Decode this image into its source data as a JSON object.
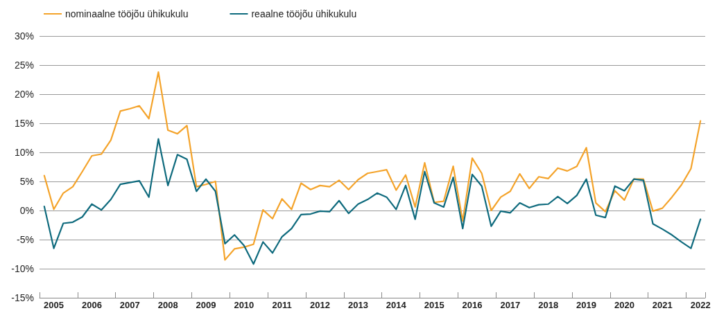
{
  "chart_data": {
    "type": "line",
    "categories": [
      null,
      "2005",
      null,
      null,
      null,
      "2006",
      null,
      null,
      null,
      "2007",
      null,
      null,
      null,
      "2008",
      null,
      null,
      null,
      "2009",
      null,
      null,
      null,
      "2010",
      null,
      null,
      null,
      "2011",
      null,
      null,
      null,
      "2012",
      null,
      null,
      null,
      "2013",
      null,
      null,
      null,
      "2014",
      null,
      null,
      null,
      "2015",
      null,
      null,
      null,
      "2016",
      null,
      null,
      null,
      "2017",
      null,
      null,
      null,
      "2018",
      null,
      null,
      null,
      "2019",
      null,
      null,
      null,
      "2020",
      null,
      null,
      null,
      "2021",
      null,
      null,
      null,
      "2022"
    ],
    "series": [
      {
        "name": "nominaalne tööjõu ühikukulu",
        "color": "#f4a32a",
        "values": [
          6.0,
          0.2,
          3.0,
          4.1,
          6.7,
          9.4,
          9.7,
          12.1,
          17.1,
          17.5,
          18.0,
          15.8,
          23.8,
          13.8,
          13.2,
          14.6,
          4.1,
          4.5,
          5.0,
          -8.5,
          -6.6,
          -6.3,
          -5.8,
          0.1,
          -1.4,
          2.0,
          0.2,
          4.7,
          3.6,
          4.3,
          4.1,
          5.2,
          3.6,
          5.3,
          6.4,
          6.7,
          7.0,
          3.5,
          6.1,
          0.6,
          8.2,
          1.4,
          1.6,
          7.6,
          -1.8,
          9.0,
          6.4,
          0.0,
          2.3,
          3.3,
          6.3,
          3.8,
          5.8,
          5.5,
          7.3,
          6.8,
          7.6,
          10.8,
          1.3,
          -0.2,
          3.4,
          1.8,
          5.4,
          5.4,
          -0.1,
          0.4,
          2.3,
          4.4,
          7.2,
          15.4
        ]
      },
      {
        "name": "reaalne tööjõu ühikukulu",
        "color": "#0e6a7d",
        "values": [
          0.7,
          -6.5,
          -2.2,
          -2.0,
          -1.1,
          1.1,
          0.1,
          1.9,
          4.5,
          4.8,
          5.1,
          2.3,
          12.3,
          4.3,
          9.6,
          8.8,
          3.3,
          5.4,
          3.3,
          -5.7,
          -4.2,
          -6.0,
          -9.2,
          -5.4,
          -7.3,
          -4.5,
          -3.1,
          -0.7,
          -0.6,
          -0.1,
          -0.2,
          1.7,
          -0.5,
          1.1,
          1.9,
          3.0,
          2.3,
          0.2,
          4.3,
          -1.5,
          6.7,
          1.3,
          0.6,
          5.7,
          -3.1,
          6.2,
          4.2,
          -2.7,
          -0.1,
          -0.4,
          1.3,
          0.5,
          1.0,
          1.1,
          2.4,
          1.2,
          2.6,
          5.4,
          -0.8,
          -1.2,
          4.2,
          3.4,
          5.4,
          5.2,
          -2.3,
          -3.2,
          -4.2,
          -5.4,
          -6.5,
          -1.5
        ]
      }
    ],
    "ylim": [
      -15,
      30
    ],
    "yticks": [
      {
        "value": -15,
        "label": "-15%"
      },
      {
        "value": -10,
        "label": "-10%"
      },
      {
        "value": -5,
        "label": "-5%"
      },
      {
        "value": 0,
        "label": "0%"
      },
      {
        "value": 5,
        "label": "5%"
      },
      {
        "value": 10,
        "label": "10%"
      },
      {
        "value": 15,
        "label": "15%"
      },
      {
        "value": 20,
        "label": "20%"
      },
      {
        "value": 25,
        "label": "25%"
      },
      {
        "value": 30,
        "label": "30%"
      }
    ],
    "grid": "y",
    "legend": "top left",
    "marker": "none",
    "line_style": "solid"
  }
}
